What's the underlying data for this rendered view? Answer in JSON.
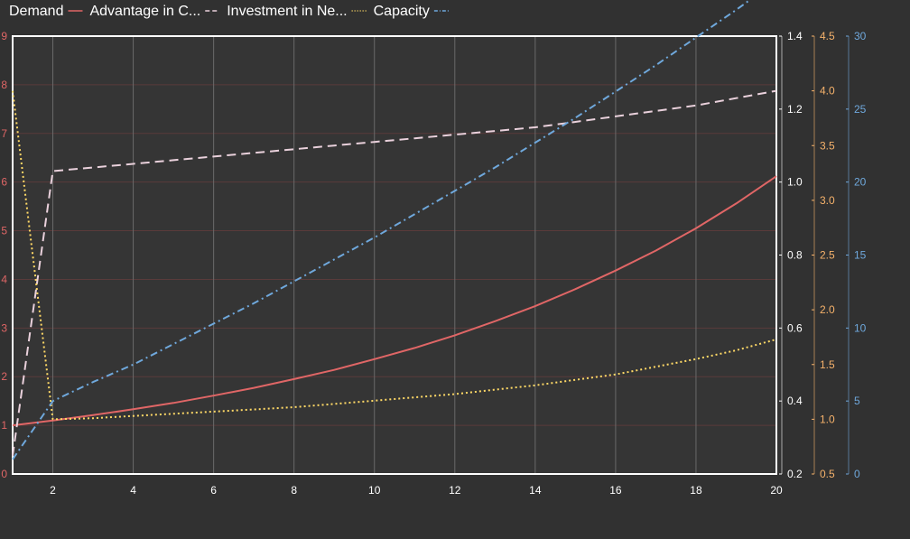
{
  "chart_data": {
    "type": "line",
    "x": [
      1,
      2,
      3,
      4,
      5,
      6,
      7,
      8,
      9,
      10,
      11,
      12,
      13,
      14,
      15,
      16,
      17,
      18,
      19,
      20
    ],
    "xlim": [
      1,
      20
    ],
    "x_ticks": [
      2,
      4,
      6,
      8,
      10,
      12,
      14,
      16,
      18,
      20
    ],
    "legend_placement": "top-left",
    "grid": true,
    "axes": {
      "left": {
        "min": 0,
        "max": 9,
        "ticks": [
          0,
          1,
          2,
          3,
          4,
          5,
          6,
          7,
          8,
          9
        ],
        "labels": [
          "0",
          "1",
          "2",
          "3",
          "4",
          "5",
          "6",
          "7",
          "8",
          "9"
        ],
        "color": "#e06666"
      },
      "right1": {
        "min": 0.2,
        "max": 1.4,
        "ticks": [
          0.2,
          0.4,
          0.6,
          0.8,
          1.0,
          1.2,
          1.4
        ],
        "labels": [
          "0.2",
          "0.4",
          "0.6",
          "0.8",
          "1.0",
          "1.2",
          "1.4"
        ],
        "color": "#ffffff"
      },
      "right2": {
        "min": 0.5,
        "max": 4.5,
        "ticks": [
          0.5,
          1.0,
          1.5,
          2.0,
          2.5,
          3.0,
          3.5,
          4.0,
          4.5
        ],
        "labels": [
          "0.5",
          "1.0",
          "1.5",
          "2.0",
          "2.5",
          "3.0",
          "3.5",
          "4.0",
          "4.5"
        ],
        "color": "#f6b26b"
      },
      "right3": {
        "min": 0,
        "max": 30,
        "ticks": [
          0,
          5,
          10,
          15,
          20,
          25,
          30
        ],
        "labels": [
          "0",
          "5",
          "10",
          "15",
          "20",
          "25",
          "30"
        ],
        "color": "#6fa8dc"
      }
    },
    "series": [
      {
        "name": "Demand",
        "axis": "left",
        "color": "#e06666",
        "dash": "",
        "values": [
          1.0,
          1.1,
          1.21,
          1.33,
          1.46,
          1.61,
          1.77,
          1.95,
          2.14,
          2.36,
          2.59,
          2.85,
          3.14,
          3.45,
          3.8,
          4.18,
          4.59,
          5.05,
          5.56,
          6.12
        ]
      },
      {
        "name": "Advantage in C...",
        "axis": "right1",
        "color": "#ead1dc",
        "dash": "10,6",
        "values": [
          0.25,
          1.03,
          1.04,
          1.05,
          1.06,
          1.07,
          1.08,
          1.09,
          1.1,
          1.11,
          1.12,
          1.13,
          1.14,
          1.15,
          1.165,
          1.18,
          1.195,
          1.21,
          1.23,
          1.25
        ]
      },
      {
        "name": "Investment in Ne...",
        "axis": "right2",
        "color": "#ffd966",
        "dash": "2,3",
        "values": [
          4.0,
          1.0,
          1.01,
          1.03,
          1.05,
          1.07,
          1.09,
          1.11,
          1.14,
          1.17,
          1.2,
          1.23,
          1.27,
          1.31,
          1.36,
          1.41,
          1.48,
          1.55,
          1.63,
          1.73
        ]
      },
      {
        "name": "Capacity",
        "axis": "right3",
        "color": "#6fa8dc",
        "dash": "8,4,2,4",
        "values": [
          1.0,
          5.0,
          6.3,
          7.5,
          8.9,
          10.3,
          11.7,
          13.2,
          14.7,
          16.2,
          17.8,
          19.4,
          21.0,
          22.7,
          24.4,
          26.2,
          28.0,
          29.9,
          31.8,
          33.8
        ]
      }
    ]
  }
}
